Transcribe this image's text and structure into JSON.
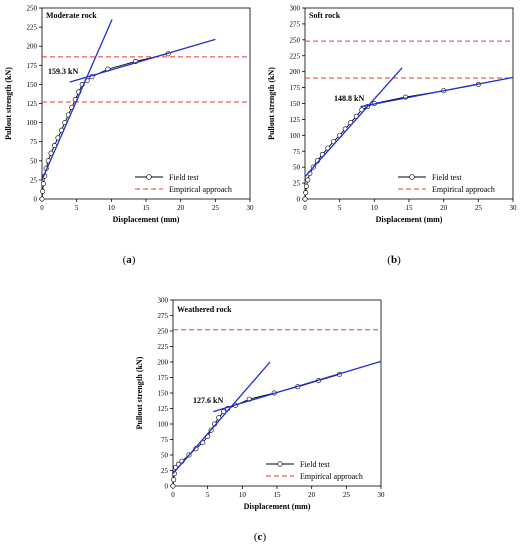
{
  "chart_data": [
    {
      "panel": "(a)",
      "type": "line",
      "title": "Moderate rock",
      "xlabel": "Displacement (mm)",
      "ylabel": "Pullout strength (kN)",
      "xlim": [
        0,
        30
      ],
      "ylim": [
        0,
        250
      ],
      "xticks": [
        0,
        5,
        10,
        15,
        20,
        25,
        30
      ],
      "yticks": [
        0,
        25,
        50,
        75,
        100,
        125,
        150,
        175,
        200,
        225,
        250
      ],
      "annotation": "159.3 kN",
      "legend": [
        "Field test",
        "Empirical approach"
      ],
      "legend_position": "bottom-right",
      "field_test": {
        "x": [
          0,
          0.1,
          0.2,
          0.4,
          0.6,
          0.9,
          1.3,
          1.8,
          2.3,
          2.8,
          3.3,
          3.8,
          4.3,
          4.8,
          5.3,
          5.8,
          6.5,
          7.2,
          9.5,
          13.5,
          18.2
        ],
        "y": [
          0,
          10,
          20,
          30,
          40,
          50,
          60,
          70,
          80,
          90,
          100,
          110,
          120,
          130,
          140,
          150,
          155,
          160,
          170,
          180,
          190
        ]
      },
      "empirical_lines": [
        127,
        186
      ],
      "fit_lines": [
        {
          "x": [
            0,
            10.1
          ],
          "y": [
            25,
            235
          ]
        },
        {
          "x": [
            4,
            25
          ],
          "y": [
            153,
            209
          ]
        }
      ]
    },
    {
      "panel": "(b)",
      "type": "line",
      "title": "Soft rock",
      "xlabel": "Displacement (mm)",
      "ylabel": "Pullout strength (kN)",
      "xlim": [
        0,
        30
      ],
      "ylim": [
        0,
        300
      ],
      "xticks": [
        0,
        5,
        10,
        15,
        20,
        25,
        30
      ],
      "yticks": [
        0,
        25,
        50,
        75,
        100,
        125,
        150,
        175,
        200,
        225,
        250,
        275,
        300
      ],
      "annotation": "148.8 kN",
      "legend": [
        "Field test",
        "Empirical approach"
      ],
      "legend_position": "bottom-right",
      "field_test": {
        "x": [
          0,
          0.1,
          0.2,
          0.4,
          0.7,
          1.2,
          1.8,
          2.5,
          3.3,
          4.1,
          5.0,
          5.8,
          6.6,
          7.4,
          8.2,
          9.0,
          10.0,
          14.5,
          20.0,
          25.0
        ],
        "y": [
          0,
          10,
          20,
          30,
          40,
          50,
          60,
          70,
          80,
          90,
          100,
          110,
          120,
          130,
          140,
          145,
          150,
          160,
          170,
          180
        ]
      },
      "empirical_lines": [
        190,
        248
      ],
      "fit_lines": [
        {
          "x": [
            0,
            14
          ],
          "y": [
            35,
            206
          ]
        },
        {
          "x": [
            8,
            30
          ],
          "y": [
            145,
            191
          ]
        }
      ]
    },
    {
      "panel": "(c)",
      "type": "line",
      "title": "Weathered rock",
      "xlabel": "Displacement (mm)",
      "ylabel": "Pullout strength (kN)",
      "xlim": [
        0,
        30
      ],
      "ylim": [
        0,
        300
      ],
      "xticks": [
        0,
        5,
        10,
        15,
        20,
        25,
        30
      ],
      "yticks": [
        0,
        25,
        50,
        75,
        100,
        125,
        150,
        175,
        200,
        225,
        250,
        275,
        300
      ],
      "annotation": "127.6 kN",
      "legend": [
        "Field test",
        "Empirical approach"
      ],
      "legend_position": "bottom-right",
      "field_test": {
        "x": [
          0,
          0.1,
          0.2,
          0.4,
          0.8,
          1.3,
          2.3,
          3.3,
          4.3,
          5.0,
          5.5,
          6.0,
          6.6,
          7.3,
          7.9,
          9.0,
          11.0,
          14.6,
          18.0,
          21.0,
          24.0
        ],
        "y": [
          0,
          10,
          20,
          30,
          35,
          40,
          50,
          60,
          70,
          80,
          90,
          100,
          110,
          120,
          125,
          130,
          140,
          150,
          160,
          170,
          180
        ]
      },
      "empirical_lines": [
        252
      ],
      "fit_lines": [
        {
          "x": [
            0,
            14
          ],
          "y": [
            20,
            200
          ]
        },
        {
          "x": [
            5.8,
            30
          ],
          "y": [
            120,
            201
          ]
        }
      ]
    }
  ]
}
